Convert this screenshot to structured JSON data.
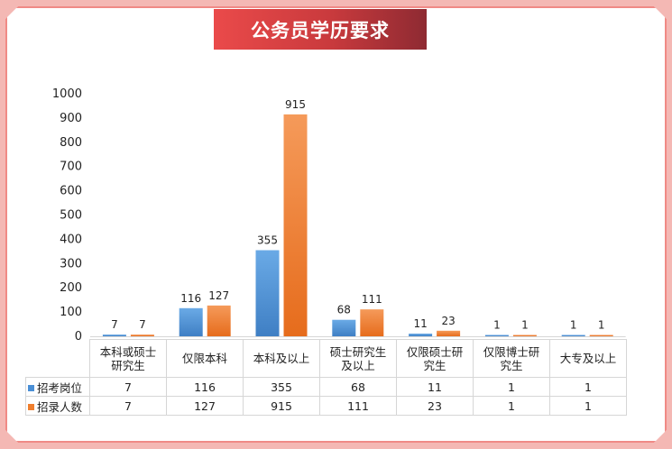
{
  "title": "公务员学历要求",
  "colors": {
    "series1": "#4a8fd6",
    "series2": "#f07f2e",
    "frame": "#f08a86",
    "title_bg": "#d83f43"
  },
  "chart_data": {
    "type": "bar",
    "title": "公务员学历要求",
    "categories": [
      "本科或硕士研究生",
      "仅限本科",
      "本科及以上",
      "硕士研究生及以上",
      "仅限硕士研究生",
      "仅限博士研究生",
      "大专及以上"
    ],
    "category_labels": [
      [
        "本科或硕士",
        "研究生"
      ],
      [
        "仅限本科"
      ],
      [
        "本科及以上"
      ],
      [
        "硕士研究生",
        "及以上"
      ],
      [
        "仅限硕士研",
        "究生"
      ],
      [
        "仅限博士研",
        "究生"
      ],
      [
        "大专及以上"
      ]
    ],
    "series": [
      {
        "name": "招考岗位",
        "values": [
          7,
          116,
          355,
          68,
          11,
          1,
          1
        ]
      },
      {
        "name": "招录人数",
        "values": [
          7,
          127,
          915,
          111,
          23,
          1,
          1
        ]
      }
    ],
    "ylim": [
      0,
      1000
    ],
    "yticks": [
      0,
      100,
      200,
      300,
      400,
      500,
      600,
      700,
      800,
      900,
      1000
    ],
    "legend": "data-table",
    "grid": false
  }
}
